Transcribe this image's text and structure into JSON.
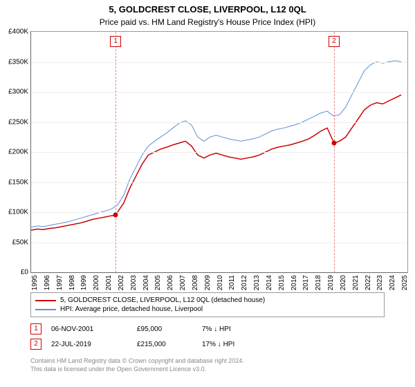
{
  "title": "5, GOLDCREST CLOSE, LIVERPOOL, L12 0QL",
  "subtitle": "Price paid vs. HM Land Registry's House Price Index (HPI)",
  "chart": {
    "type": "line",
    "x_min": 1995,
    "x_max": 2025.5,
    "y_min": 0,
    "y_max": 400000,
    "y_ticks": [
      0,
      50000,
      100000,
      150000,
      200000,
      250000,
      300000,
      350000,
      400000
    ],
    "y_tick_labels": [
      "£0",
      "£50K",
      "£100K",
      "£150K",
      "£200K",
      "£250K",
      "£300K",
      "£350K",
      "£400K"
    ],
    "x_ticks": [
      1995,
      1996,
      1997,
      1998,
      1999,
      2000,
      2001,
      2002,
      2003,
      2004,
      2005,
      2006,
      2007,
      2008,
      2009,
      2010,
      2011,
      2012,
      2013,
      2014,
      2015,
      2016,
      2017,
      2018,
      2019,
      2020,
      2021,
      2022,
      2023,
      2024,
      2025
    ],
    "background_color": "#ffffff",
    "grid_color": "#eeeeee",
    "axis_color": "#666666",
    "series": [
      {
        "name": "property",
        "label": "5, GOLDCREST CLOSE, LIVERPOOL, L12 0QL (detached house)",
        "color": "#cc0000",
        "line_width": 1.5,
        "data": [
          [
            1995,
            70000
          ],
          [
            1995.5,
            72000
          ],
          [
            1996,
            71000
          ],
          [
            1996.5,
            73000
          ],
          [
            1997,
            74000
          ],
          [
            1997.5,
            76000
          ],
          [
            1998,
            78000
          ],
          [
            1998.5,
            80000
          ],
          [
            1999,
            82000
          ],
          [
            1999.5,
            85000
          ],
          [
            2000,
            88000
          ],
          [
            2000.5,
            90000
          ],
          [
            2001,
            92000
          ],
          [
            2001.5,
            94000
          ],
          [
            2001.85,
            95000
          ],
          [
            2002,
            100000
          ],
          [
            2002.5,
            115000
          ],
          [
            2003,
            140000
          ],
          [
            2003.5,
            160000
          ],
          [
            2004,
            180000
          ],
          [
            2004.5,
            195000
          ],
          [
            2005,
            200000
          ],
          [
            2005.5,
            205000
          ],
          [
            2006,
            208000
          ],
          [
            2006.5,
            212000
          ],
          [
            2007,
            215000
          ],
          [
            2007.5,
            218000
          ],
          [
            2008,
            210000
          ],
          [
            2008.5,
            195000
          ],
          [
            2009,
            190000
          ],
          [
            2009.5,
            195000
          ],
          [
            2010,
            198000
          ],
          [
            2010.5,
            195000
          ],
          [
            2011,
            192000
          ],
          [
            2011.5,
            190000
          ],
          [
            2012,
            188000
          ],
          [
            2012.5,
            190000
          ],
          [
            2013,
            192000
          ],
          [
            2013.5,
            195000
          ],
          [
            2014,
            200000
          ],
          [
            2014.5,
            205000
          ],
          [
            2015,
            208000
          ],
          [
            2015.5,
            210000
          ],
          [
            2016,
            212000
          ],
          [
            2016.5,
            215000
          ],
          [
            2017,
            218000
          ],
          [
            2017.5,
            222000
          ],
          [
            2018,
            228000
          ],
          [
            2018.5,
            235000
          ],
          [
            2019,
            240000
          ],
          [
            2019.55,
            215000
          ],
          [
            2020,
            218000
          ],
          [
            2020.5,
            225000
          ],
          [
            2021,
            240000
          ],
          [
            2021.5,
            255000
          ],
          [
            2022,
            270000
          ],
          [
            2022.5,
            278000
          ],
          [
            2023,
            282000
          ],
          [
            2023.5,
            280000
          ],
          [
            2024,
            285000
          ],
          [
            2024.5,
            290000
          ],
          [
            2025,
            295000
          ]
        ]
      },
      {
        "name": "hpi",
        "label": "HPI: Average price, detached house, Liverpool",
        "color": "#5b8fd6",
        "line_width": 1,
        "data": [
          [
            1995,
            75000
          ],
          [
            1995.5,
            77000
          ],
          [
            1996,
            76000
          ],
          [
            1996.5,
            78000
          ],
          [
            1997,
            80000
          ],
          [
            1997.5,
            82000
          ],
          [
            1998,
            84000
          ],
          [
            1998.5,
            87000
          ],
          [
            1999,
            90000
          ],
          [
            1999.5,
            93000
          ],
          [
            2000,
            96000
          ],
          [
            2000.5,
            99000
          ],
          [
            2001,
            102000
          ],
          [
            2001.5,
            105000
          ],
          [
            2002,
            112000
          ],
          [
            2002.5,
            128000
          ],
          [
            2003,
            155000
          ],
          [
            2003.5,
            175000
          ],
          [
            2004,
            195000
          ],
          [
            2004.5,
            210000
          ],
          [
            2005,
            218000
          ],
          [
            2005.5,
            225000
          ],
          [
            2006,
            232000
          ],
          [
            2006.5,
            240000
          ],
          [
            2007,
            248000
          ],
          [
            2007.5,
            252000
          ],
          [
            2008,
            245000
          ],
          [
            2008.5,
            225000
          ],
          [
            2009,
            218000
          ],
          [
            2009.5,
            225000
          ],
          [
            2010,
            228000
          ],
          [
            2010.5,
            225000
          ],
          [
            2011,
            222000
          ],
          [
            2011.5,
            220000
          ],
          [
            2012,
            218000
          ],
          [
            2012.5,
            220000
          ],
          [
            2013,
            222000
          ],
          [
            2013.5,
            225000
          ],
          [
            2014,
            230000
          ],
          [
            2014.5,
            235000
          ],
          [
            2015,
            238000
          ],
          [
            2015.5,
            240000
          ],
          [
            2016,
            243000
          ],
          [
            2016.5,
            246000
          ],
          [
            2017,
            250000
          ],
          [
            2017.5,
            255000
          ],
          [
            2018,
            260000
          ],
          [
            2018.5,
            265000
          ],
          [
            2019,
            268000
          ],
          [
            2019.5,
            260000
          ],
          [
            2020,
            262000
          ],
          [
            2020.5,
            275000
          ],
          [
            2021,
            295000
          ],
          [
            2021.5,
            315000
          ],
          [
            2022,
            335000
          ],
          [
            2022.5,
            345000
          ],
          [
            2023,
            350000
          ],
          [
            2023.5,
            348000
          ],
          [
            2024,
            350000
          ],
          [
            2024.5,
            352000
          ],
          [
            2025,
            350000
          ]
        ]
      }
    ],
    "markers": [
      {
        "n": "1",
        "x": 2001.85,
        "y": 95000,
        "color": "#cc0000"
      },
      {
        "n": "2",
        "x": 2019.55,
        "y": 215000,
        "color": "#cc0000"
      }
    ],
    "marker_line_color": "#e88888"
  },
  "sales": [
    {
      "n": "1",
      "date": "06-NOV-2001",
      "price": "£95,000",
      "diff": "7% ↓ HPI"
    },
    {
      "n": "2",
      "date": "22-JUL-2019",
      "price": "£215,000",
      "diff": "17% ↓ HPI"
    }
  ],
  "footer_line1": "Contains HM Land Registry data © Crown copyright and database right 2024.",
  "footer_line2": "This data is licensed under the Open Government Licence v3.0."
}
